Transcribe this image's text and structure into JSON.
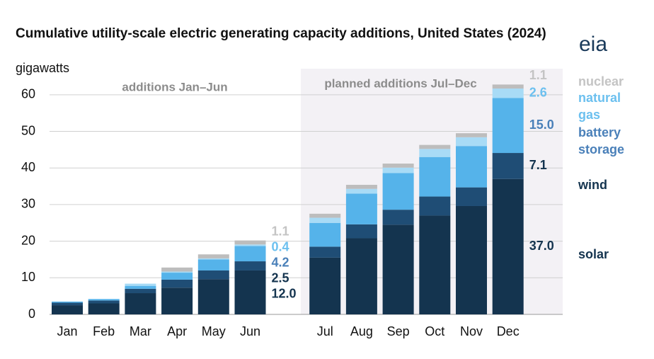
{
  "chart_data": {
    "type": "stacked-bar",
    "title": "Cumulative utility-scale electric generating capacity additions, United States (2024)",
    "y_label": "gigawatts",
    "logo": "eia",
    "annotations": [
      "additions Jan–Jun",
      "planned additions Jul–Dec"
    ],
    "categories": [
      "Jan",
      "Feb",
      "Mar",
      "Apr",
      "May",
      "Jun",
      "Jul",
      "Aug",
      "Sep",
      "Oct",
      "Nov",
      "Dec"
    ],
    "series": [
      {
        "name": "solar",
        "color": "#14344f",
        "text_color": "#14344f",
        "values": [
          2.5,
          3.0,
          5.8,
          7.3,
          9.6,
          12.0,
          15.5,
          20.8,
          24.5,
          27.0,
          29.6,
          37.0
        ],
        "value_labels": [
          null,
          null,
          null,
          null,
          null,
          "12.0",
          null,
          null,
          null,
          null,
          null,
          "37.0"
        ]
      },
      {
        "name": "wind",
        "color": "#1f4d75",
        "text_color": "#14344f",
        "values": [
          0.7,
          0.8,
          1.2,
          2.2,
          2.4,
          2.5,
          3.0,
          3.8,
          4.1,
          5.2,
          5.1,
          7.1
        ],
        "value_labels": [
          null,
          null,
          null,
          null,
          null,
          "2.5",
          null,
          null,
          null,
          null,
          null,
          "7.1"
        ]
      },
      {
        "name": "battery storage",
        "color": "#55b3ea",
        "text_color": "#4a80b9",
        "values": [
          0.3,
          0.4,
          0.8,
          1.9,
          3.0,
          4.2,
          6.5,
          8.4,
          10.0,
          10.8,
          11.3,
          15.0
        ],
        "value_labels": [
          null,
          null,
          null,
          null,
          null,
          "4.2",
          null,
          null,
          null,
          null,
          null,
          "15.0"
        ]
      },
      {
        "name": "natural gas",
        "color": "#a8dbf6",
        "text_color": "#6cc0ef",
        "values": [
          0,
          0,
          0.6,
          0.3,
          0.3,
          0.4,
          1.4,
          1.3,
          1.5,
          2.2,
          2.4,
          2.6
        ],
        "value_labels": [
          null,
          null,
          null,
          null,
          null,
          "0.4",
          null,
          null,
          null,
          null,
          null,
          "2.6"
        ]
      },
      {
        "name": "nuclear",
        "color": "#bdbdbd",
        "text_color": "#c4c4c4",
        "values": [
          0,
          0,
          0,
          1.1,
          1.1,
          1.1,
          1.1,
          1.1,
          1.1,
          1.1,
          1.1,
          1.1
        ],
        "value_labels": [
          null,
          null,
          null,
          null,
          null,
          "1.1",
          null,
          null,
          null,
          null,
          null,
          "1.1"
        ]
      }
    ],
    "ylim": [
      0,
      65
    ],
    "yticks": [
      0,
      10,
      20,
      30,
      40,
      50,
      60
    ],
    "grid": true
  }
}
